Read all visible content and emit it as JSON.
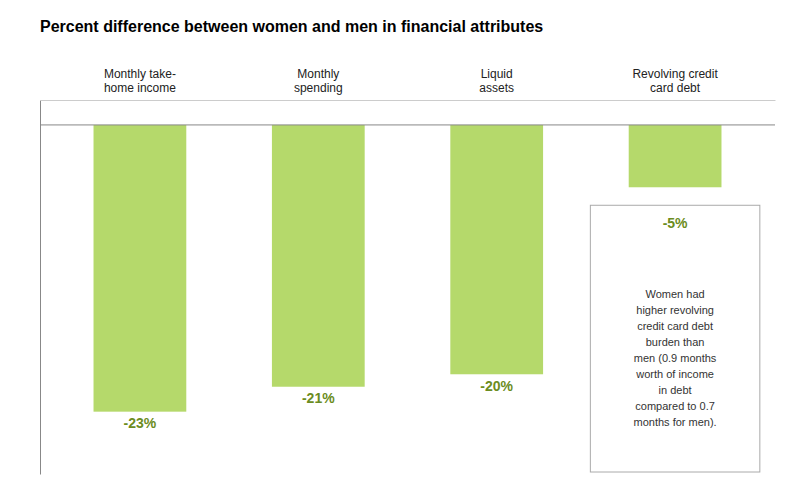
{
  "chart_data": {
    "type": "bar",
    "title": "Percent difference between women and men in financial attributes",
    "categories": [
      "Monthly take-\nhome income",
      "Monthly\nspending",
      "Liquid\nassets",
      "Revolving credit\ncard debt"
    ],
    "values": [
      -23,
      -21,
      -20,
      -5
    ],
    "value_labels": [
      "-23%",
      "-21%",
      "-20%",
      "-5%"
    ],
    "data_labels": true,
    "color": "#b5d96b",
    "ylim": [
      -28,
      2
    ],
    "yticks": [],
    "tick_labels": "x",
    "annotation": "Women had\nhigher revolving\ncredit card debt\nburden than\nmen (0.9 months\nworth of income\nin debt\ncompared to 0.7\nmonths for men)."
  }
}
